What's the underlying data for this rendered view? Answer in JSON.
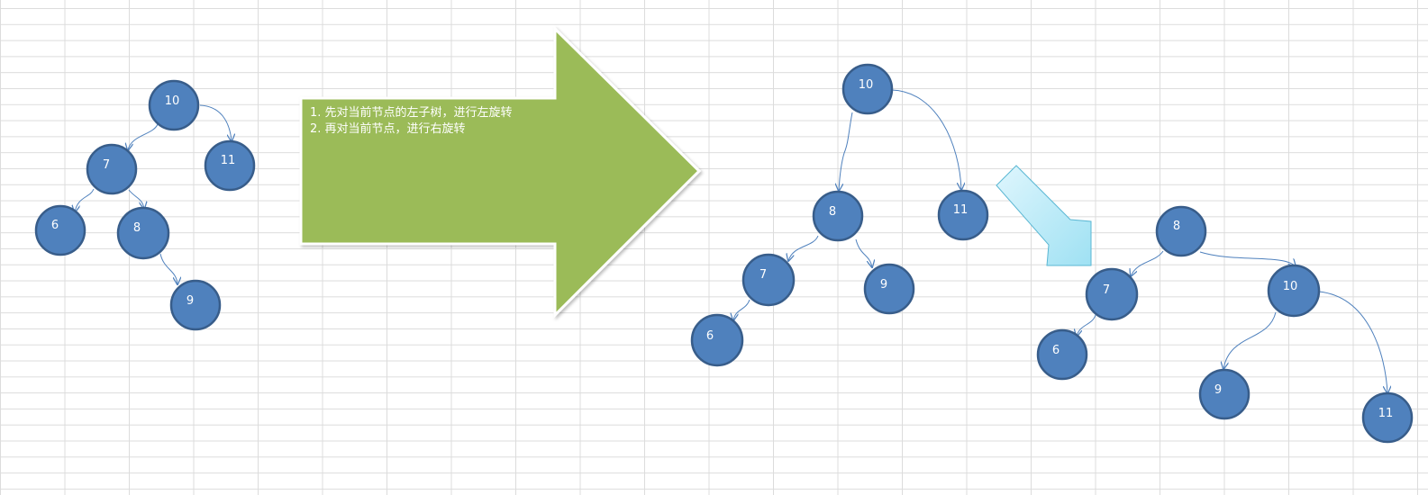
{
  "instructions": [
    "1. 先对当前节点的左子树，进行左旋转",
    "2. 再对当前节点，进行右旋转"
  ],
  "colors": {
    "node_fill": "#4f81bd",
    "node_stroke": "#385d8a",
    "arrow_green": "#9bbb59",
    "arrow_cyan": "#b7ebf7"
  },
  "trees": [
    {
      "name": "original",
      "nodes": [
        {
          "id": "10",
          "label": "10"
        },
        {
          "id": "7",
          "label": "7"
        },
        {
          "id": "11",
          "label": "11"
        },
        {
          "id": "6",
          "label": "6"
        },
        {
          "id": "8",
          "label": "8"
        },
        {
          "id": "9",
          "label": "9"
        }
      ],
      "edges": [
        [
          "10",
          "7"
        ],
        [
          "10",
          "11"
        ],
        [
          "7",
          "6"
        ],
        [
          "7",
          "8"
        ],
        [
          "8",
          "9"
        ]
      ]
    },
    {
      "name": "after-left-rotation",
      "nodes": [
        {
          "id": "10",
          "label": "10"
        },
        {
          "id": "8",
          "label": "8"
        },
        {
          "id": "11",
          "label": "11"
        },
        {
          "id": "7",
          "label": "7"
        },
        {
          "id": "9",
          "label": "9"
        },
        {
          "id": "6",
          "label": "6"
        }
      ],
      "edges": [
        [
          "10",
          "8"
        ],
        [
          "10",
          "11"
        ],
        [
          "8",
          "7"
        ],
        [
          "8",
          "9"
        ],
        [
          "7",
          "6"
        ]
      ]
    },
    {
      "name": "after-right-rotation",
      "nodes": [
        {
          "id": "8",
          "label": "8"
        },
        {
          "id": "7",
          "label": "7"
        },
        {
          "id": "10",
          "label": "10"
        },
        {
          "id": "6",
          "label": "6"
        },
        {
          "id": "9",
          "label": "9"
        },
        {
          "id": "11",
          "label": "11"
        }
      ],
      "edges": [
        [
          "8",
          "7"
        ],
        [
          "8",
          "10"
        ],
        [
          "7",
          "6"
        ],
        [
          "10",
          "9"
        ],
        [
          "10",
          "11"
        ]
      ]
    }
  ]
}
